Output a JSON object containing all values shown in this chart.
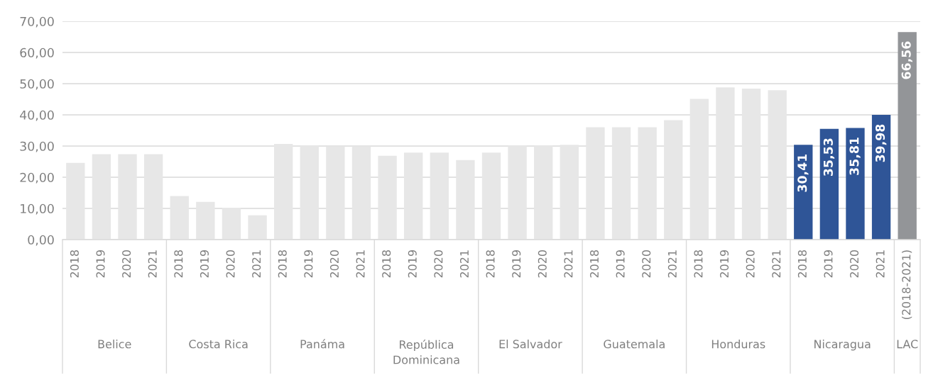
{
  "chart_data": {
    "type": "bar",
    "categories": [
      "2018",
      "2019",
      "2020",
      "2021",
      "2018",
      "2019",
      "2020",
      "2021",
      "2018",
      "2019",
      "2020",
      "2021",
      "2018",
      "2019",
      "2020",
      "2021",
      "2018",
      "2019",
      "2020",
      "2021",
      "2018",
      "2019",
      "2020",
      "2021",
      "2018",
      "2019",
      "2020",
      "2021",
      "2018",
      "2019",
      "2020",
      "2021",
      "(2018-2021)"
    ],
    "series": [
      {
        "colors": [
          "#e7e7e7",
          "#e7e7e7",
          "#e7e7e7",
          "#e7e7e7",
          "#e7e7e7",
          "#e7e7e7",
          "#e7e7e7",
          "#e7e7e7",
          "#e7e7e7",
          "#e7e7e7",
          "#e7e7e7",
          "#e7e7e7",
          "#e7e7e7",
          "#e7e7e7",
          "#e7e7e7",
          "#e7e7e7",
          "#e7e7e7",
          "#e7e7e7",
          "#e7e7e7",
          "#e7e7e7",
          "#e7e7e7",
          "#e7e7e7",
          "#e7e7e7",
          "#e7e7e7",
          "#e7e7e7",
          "#e7e7e7",
          "#e7e7e7",
          "#e7e7e7",
          "#2f5597",
          "#2f5597",
          "#2f5597",
          "#2f5597",
          "#939598"
        ],
        "values": [
          24.6,
          27.4,
          27.4,
          27.4,
          14.0,
          12.1,
          10.2,
          7.8,
          30.7,
          30.1,
          29.9,
          29.9,
          26.9,
          27.9,
          27.9,
          25.5,
          27.9,
          30.1,
          30.1,
          30.4,
          36.0,
          36.0,
          36.0,
          38.3,
          45.1,
          48.8,
          48.4,
          47.9,
          30.41,
          35.53,
          35.81,
          39.98,
          66.56
        ],
        "value_labels": [
          null,
          null,
          null,
          null,
          null,
          null,
          null,
          null,
          null,
          null,
          null,
          null,
          null,
          null,
          null,
          null,
          null,
          null,
          null,
          null,
          null,
          null,
          null,
          null,
          null,
          null,
          null,
          null,
          "30,41",
          "35,53",
          "35,81",
          "39,98",
          "66,56"
        ]
      }
    ],
    "ylim": [
      0,
      70
    ],
    "yticks": [
      {
        "value": 0,
        "label": "0,00"
      },
      {
        "value": 10,
        "label": "10,00"
      },
      {
        "value": 20,
        "label": "20,00"
      },
      {
        "value": 30,
        "label": "30,00"
      },
      {
        "value": 40,
        "label": "40,00"
      },
      {
        "value": 50,
        "label": "50,00"
      },
      {
        "value": 60,
        "label": "60,00"
      },
      {
        "value": 70,
        "label": "70,00"
      }
    ],
    "grid": "y",
    "annotations": [
      "Belice",
      "Costa Rica",
      "Panáma",
      "República\nDominicana",
      "El Salvador",
      "Guatemala",
      "Honduras",
      "Nicaragua",
      "LAC"
    ]
  }
}
